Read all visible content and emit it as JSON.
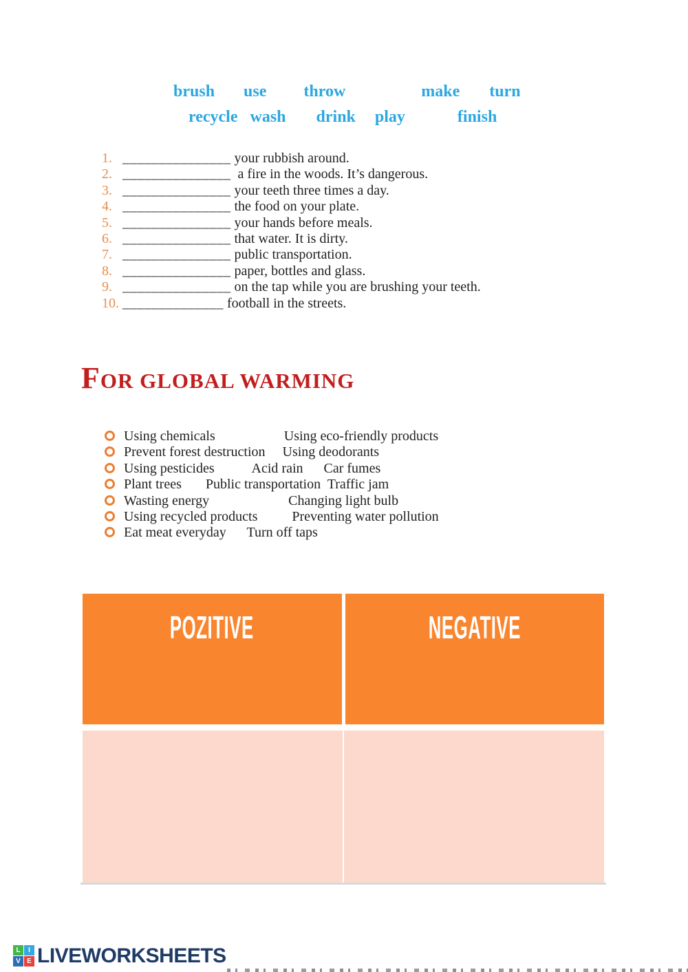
{
  "colors": {
    "wordbank-blue": "#2BA7E0",
    "number-orange": "#E78C4E",
    "bullet-orange": "#ED7D31",
    "heading-red": "#C21E1E",
    "header-orange": "#F9852F",
    "cell-pink": "#FCD9CC",
    "text-dark": "#1F1F1F",
    "logo-navy": "#1E3A66",
    "table-border-gray": "#D8D8D8"
  },
  "word_bank": {
    "row1": [
      "brush",
      "use",
      "throw",
      "make",
      "turn"
    ],
    "row2": [
      "recycle",
      "wash",
      "drink",
      "play",
      "finish"
    ]
  },
  "exercise": {
    "items": [
      {
        "num": "1.",
        "blank": "_______________",
        "text": " your rubbish around."
      },
      {
        "num": "2.",
        "blank": "_______________",
        "text": "  a fire in the woods. It’s dangerous."
      },
      {
        "num": "3.",
        "blank": "_______________",
        "text": " your teeth three times a day."
      },
      {
        "num": "4.",
        "blank": "_______________",
        "text": " the food on your plate."
      },
      {
        "num": "5.",
        "blank": "_______________",
        "text": " your hands before meals."
      },
      {
        "num": "6.",
        "blank": "_______________",
        "text": " that water. It is dirty."
      },
      {
        "num": "7.",
        "blank": "_______________",
        "text": " public transportation."
      },
      {
        "num": "8.",
        "blank": "_______________",
        "text": " paper, bottles and glass."
      },
      {
        "num": "9.",
        "blank": "_______________",
        "text": " on the tap while you are brushing your teeth."
      },
      {
        "num": "10.",
        "blank": "______________",
        "text": " football in the streets."
      }
    ]
  },
  "heading": {
    "initial": "F",
    "rest": "OR GLOBAL WARMING"
  },
  "options": {
    "items": [
      "Using chemicals                    Using eco-friendly products",
      "Prevent forest destruction     Using deodorants",
      "Using pesticides           Acid rain      Car fumes",
      "Plant trees       Public transportation  Traffic jam",
      "Wasting energy                       Changing light bulb",
      "Using recycled products          Preventing water pollution",
      "Eat meat everyday      Turn off taps"
    ]
  },
  "table": {
    "positive_header": "POZITIVE",
    "negative_header": "NEGATIVE"
  },
  "footer": {
    "logo_text": "LIVEWORKSHEETS",
    "logo_squares": [
      {
        "letter": "L",
        "color": "#43B649"
      },
      {
        "letter": "I",
        "color": "#35A8E0"
      },
      {
        "letter": "V",
        "color": "#2D6DB5"
      },
      {
        "letter": "E",
        "color": "#E8403A"
      }
    ]
  }
}
